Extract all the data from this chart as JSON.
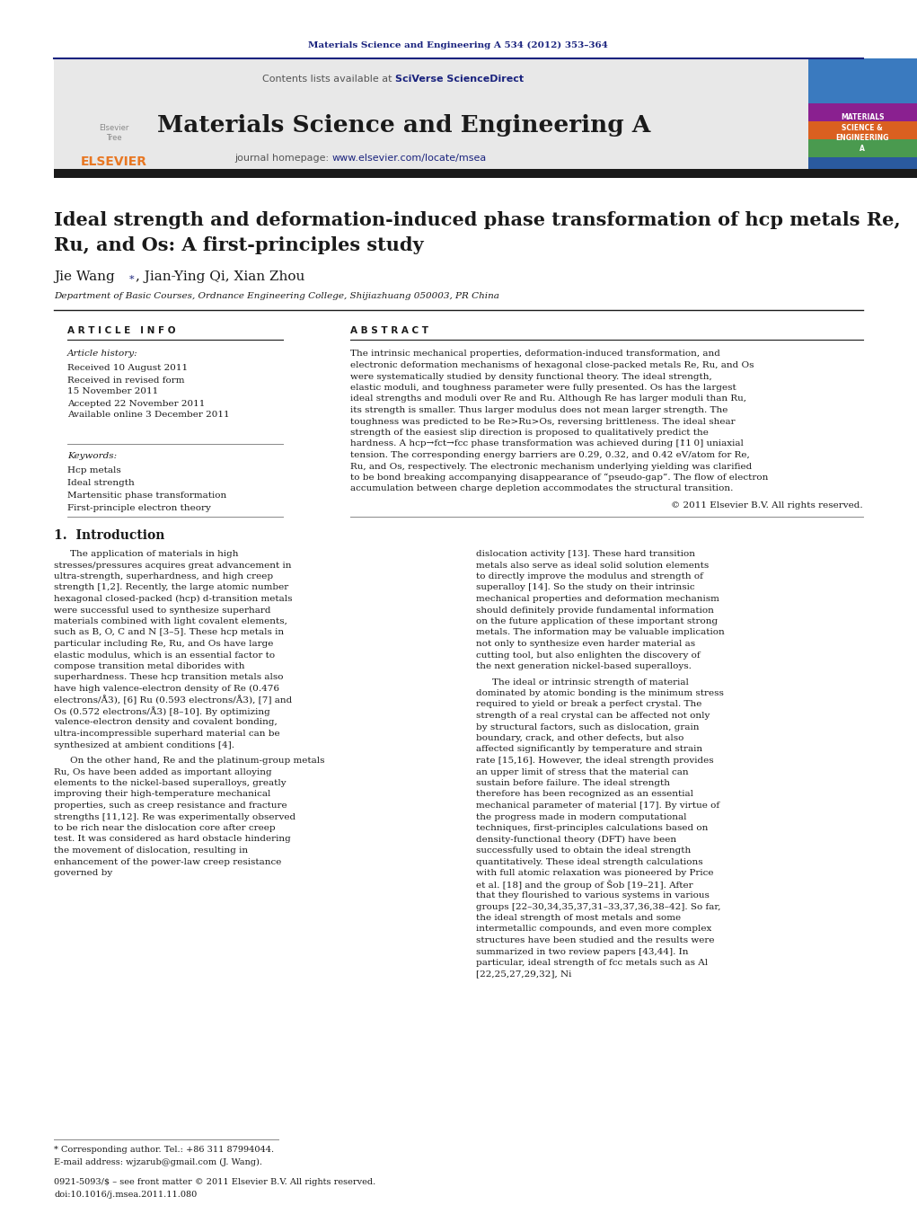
{
  "page_bg": "#ffffff",
  "header_journal_ref": "Materials Science and Engineering A 534 (2012) 353–364",
  "header_journal_ref_color": "#1a237e",
  "journal_name": "Materials Science and Engineering A",
  "journal_contents": "Contents lists available at ",
  "sciverse_text": "SciVerse ScienceDirect",
  "journal_homepage_text": "journal homepage: ",
  "journal_url": "www.elsevier.com/locate/msea",
  "elsevier_color": "#e87722",
  "link_color": "#1a237e",
  "dark_bar_color": "#1a1a1a",
  "header_bg": "#e8e8e8",
  "top_rule_color": "#1a237e",
  "title_line1": "Ideal strength and deformation-induced phase transformation of hcp metals Re,",
  "title_line2": "Ru, and Os: A first-principles study",
  "authors": "Jie Wang*, Jian-Ying Qi, Xian Zhou",
  "affiliation": "Department of Basic Courses, Ordnance Engineering College, Shijiazhuang 050003, PR China",
  "article_info_header": "A R T I C L E   I N F O",
  "abstract_header": "A B S T R A C T",
  "article_history_label": "Article history:",
  "history_items": [
    "Received 10 August 2011",
    "Received in revised form",
    "15 November 2011",
    "Accepted 22 November 2011",
    "Available online 3 December 2011"
  ],
  "keywords_label": "Keywords:",
  "keywords": [
    "Hcp metals",
    "Ideal strength",
    "Martensitic phase transformation",
    "First-principle electron theory"
  ],
  "abstract_text": "The intrinsic mechanical properties, deformation-induced transformation, and electronic deformation mechanisms of hexagonal close-packed metals Re, Ru, and Os were systematically studied by density functional theory. The ideal strength, elastic moduli, and toughness parameter were fully presented. Os has the largest ideal strengths and moduli over Re and Ru. Although Re has larger moduli than Ru, its strength is smaller. Thus larger modulus does not mean larger strength. The toughness was predicted to be Re>Ru>Os, reversing brittleness. The ideal shear strength of the easiest slip direction is proposed to qualitatively predict the hardness. A hcp→fct→fcc phase transformation was achieved during [1̒1 0] uniaxial tension. The corresponding energy barriers are 0.29, 0.32, and 0.42 eV/atom for Re, Ru, and Os, respectively. The electronic mechanism underlying yielding was clarified to be bond breaking accompanying disappearance of “pseudo-gap”. The flow of electron accumulation between charge depletion accommodates the structural transition.",
  "copyright_text": "© 2011 Elsevier B.V. All rights reserved.",
  "section1_title": "1.  Introduction",
  "intro_col1": "The application of materials in high stresses/pressures acquires great advancement in ultra-strength, superhardness, and high creep strength [1,2]. Recently, the large atomic number hexagonal closed-packed (hcp) d-transition metals were successful used to synthesize superhard materials combined with light covalent elements, such as B, O, C and N [3–5]. These hcp metals in particular including Re, Ru, and Os have large elastic modulus, which is an essential factor to compose transition metal diborides with superhardness. These hcp transition metals also have high valence-electron density of Re (0.476 electrons/Å3), [6] Ru (0.593 electrons/Å3), [7] and Os (0.572 electrons/Å3) [8–10]. By optimizing valence-electron density and covalent bonding, ultra-incompressible superhard material can be synthesized at ambient conditions [4].",
  "intro_col1_p2": "On the other hand, Re and the platinum-group metals Ru, Os have been added as important alloying elements to the nickel-based superalloys, greatly improving their high-temperature mechanical properties, such as creep resistance and fracture strengths [11,12]. Re was experimentally observed to be rich near the dislocation core after creep test. It was considered as hard obstacle hindering the movement of dislocation, resulting in enhancement of the power-law creep resistance governed by",
  "intro_col2": "dislocation activity [13]. These hard transition metals also serve as ideal solid solution elements to directly improve the modulus and strength of superalloy [14]. So the study on their intrinsic mechanical properties and deformation mechanism should definitely provide fundamental information on the future application of these important strong metals. The information may be valuable implication not only to synthesize even harder material as cutting tool, but also enlighten the discovery of the next generation nickel-based superalloys.",
  "intro_col2_p2": "The ideal or intrinsic strength of material dominated by atomic bonding is the minimum stress required to yield or break a perfect crystal. The strength of a real crystal can be affected not only by structural factors, such as dislocation, grain boundary, crack, and other defects, but also affected significantly by temperature and strain rate [15,16]. However, the ideal strength provides an upper limit of stress that the material can sustain before failure. The ideal strength therefore has been recognized as an essential mechanical parameter of material [17]. By virtue of the progress made in modern computational techniques, first-principles calculations based on density-functional theory (DFT) have been successfully used to obtain the ideal strength quantitatively. These ideal strength calculations with full atomic relaxation was pioneered by Price et al. [18] and the group of Šob [19–21]. After that they flourished to various systems in various groups [22–30,34,35,37,31–33,37,36,38–42]. So far, the ideal strength of most metals and some intermetallic compounds, and even more complex structures have been studied and the results were summarized in two review papers [43,44]. In particular, ideal strength of fcc metals such as Al [22,25,27,29,32], Ni",
  "footnote1": "* Corresponding author. Tel.: +86 311 87994044.",
  "footnote2": "E-mail address: wjzarub@gmail.com (J. Wang).",
  "footer1": "0921-5093/$ – see front matter © 2011 Elsevier B.V. All rights reserved.",
  "footer2": "doi:10.1016/j.msea.2011.11.080"
}
